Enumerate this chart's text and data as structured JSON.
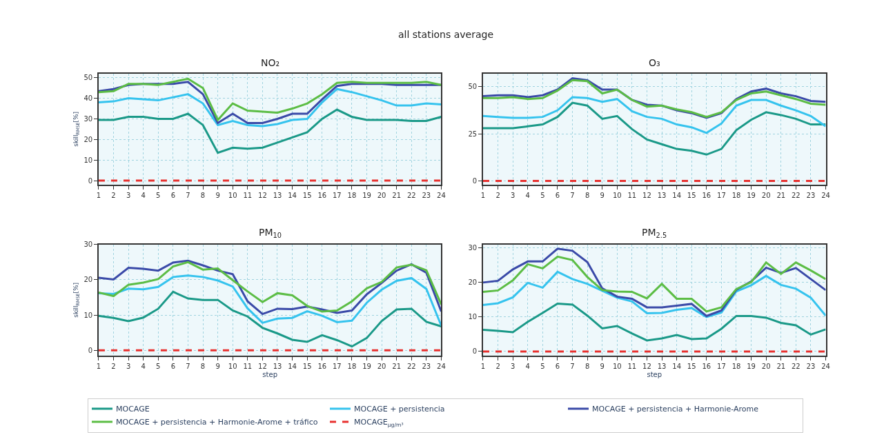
{
  "chart_data": [
    {
      "type": "line",
      "title": "NO₂",
      "annotations": [
        "all stations average"
      ],
      "ylabel": "skill$_{RMSE}$[%]",
      "x": [
        1,
        2,
        3,
        4,
        5,
        6,
        7,
        8,
        9,
        10,
        11,
        12,
        13,
        14,
        15,
        16,
        17,
        18,
        19,
        20,
        21,
        22,
        23,
        24
      ],
      "xlim": [
        1,
        24
      ],
      "xticks": [
        1,
        2,
        3,
        4,
        5,
        6,
        7,
        8,
        9,
        10,
        11,
        12,
        13,
        14,
        15,
        16,
        17,
        18,
        19,
        20,
        21,
        22,
        23,
        24
      ],
      "ylim": [
        -2,
        52
      ],
      "yticks": [
        0,
        10,
        20,
        30,
        40,
        50
      ],
      "grid": true,
      "legend": "bottom",
      "marker": "none",
      "series": [
        {
          "name": "MOCAGE",
          "color": "#1a9988",
          "values": [
            29.5,
            29.5,
            31,
            31,
            30,
            30,
            32.5,
            27,
            13.5,
            16,
            15.5,
            16,
            18.5,
            21,
            23.5,
            30,
            34.5,
            31,
            29.5,
            29.5,
            29.5,
            29,
            29,
            31
          ]
        },
        {
          "name": "MOCAGE + persistencia",
          "color": "#35c3ee",
          "values": [
            38,
            38.5,
            40,
            39.5,
            39,
            40.5,
            42,
            37.5,
            27,
            29,
            27,
            26.5,
            27.5,
            29.5,
            30,
            38,
            44.5,
            43,
            41,
            39,
            36.5,
            36.5,
            37.5,
            37
          ]
        },
        {
          "name": "MOCAGE + persistencia + Harmonie-Arome",
          "color": "#3a4aa8",
          "values": [
            43.5,
            44.5,
            46.5,
            47,
            47,
            47,
            48,
            42,
            28,
            32.5,
            28,
            28,
            30,
            32.5,
            32.5,
            39.5,
            46,
            47,
            47,
            47,
            46.5,
            46.5,
            46.5,
            46.5
          ]
        },
        {
          "name": "MOCAGE + persistencia + Harmonie-Arome + tráfico",
          "color": "#5cbd45",
          "values": [
            43,
            43.5,
            47,
            47,
            46.5,
            48,
            49.5,
            45,
            29.5,
            37.5,
            34,
            33.5,
            33,
            35,
            37.5,
            42,
            47.5,
            48,
            47.5,
            47.5,
            47.5,
            47.5,
            48,
            46.5
          ]
        },
        {
          "name": "MOCAGE$_{μg/m³}$",
          "color": "#e8312f",
          "line_style": "dashed",
          "values": [
            0,
            0,
            0,
            0,
            0,
            0,
            0,
            0,
            0,
            0,
            0,
            0,
            0,
            0,
            0,
            0,
            0,
            0,
            0,
            0,
            0,
            0,
            0,
            0
          ]
        }
      ]
    },
    {
      "type": "line",
      "title": "O₃",
      "x": [
        1,
        2,
        3,
        4,
        5,
        6,
        7,
        8,
        9,
        10,
        11,
        12,
        13,
        14,
        15,
        16,
        17,
        18,
        19,
        20,
        21,
        22,
        23,
        24
      ],
      "xlim": [
        1,
        24
      ],
      "xticks": [
        1,
        2,
        3,
        4,
        5,
        6,
        7,
        8,
        9,
        10,
        11,
        12,
        13,
        14,
        15,
        16,
        17,
        18,
        19,
        20,
        21,
        22,
        23,
        24
      ],
      "ylim": [
        -2,
        57
      ],
      "yticks": [
        0,
        25,
        50
      ],
      "grid": true,
      "marker": "none",
      "series": [
        {
          "name": "MOCAGE",
          "color": "#1a9988",
          "values": [
            28,
            28,
            28,
            29,
            30,
            34,
            41.5,
            40,
            33,
            34.5,
            27.5,
            22,
            19.5,
            17,
            16,
            14,
            17,
            27,
            32.5,
            36.5,
            35,
            33,
            30,
            30
          ]
        },
        {
          "name": "MOCAGE + persistencia",
          "color": "#35c3ee",
          "values": [
            34.5,
            34,
            33.5,
            33.5,
            34,
            37.5,
            44.5,
            44,
            42,
            43.5,
            37,
            34,
            33,
            30,
            28.5,
            25.5,
            30.5,
            40,
            43,
            43,
            40,
            37.5,
            34.5,
            29
          ]
        },
        {
          "name": "MOCAGE + persistencia + Harmonie-Arome",
          "color": "#3a4aa8",
          "values": [
            45,
            45.5,
            45.5,
            44.5,
            45.5,
            48.5,
            54.5,
            53.5,
            48.5,
            48.5,
            43,
            40.5,
            40,
            37.5,
            36,
            33.5,
            36,
            43.5,
            47.5,
            49,
            46.5,
            45,
            42.5,
            42
          ]
        },
        {
          "name": "MOCAGE + persistencia + Harmonie-Arome + tráfico",
          "color": "#5cbd45",
          "values": [
            44,
            44,
            44.5,
            43.5,
            44,
            48,
            53.5,
            53,
            46.5,
            48.5,
            43,
            39.5,
            40,
            38,
            36.5,
            34,
            36.5,
            43,
            46.5,
            47.5,
            45.5,
            43.5,
            41,
            40.5
          ]
        },
        {
          "name": "MOCAGE$_{μg/m³}$",
          "color": "#e8312f",
          "line_style": "dashed",
          "values": [
            0,
            0,
            0,
            0,
            0,
            0,
            0,
            0,
            0,
            0,
            0,
            0,
            0,
            0,
            0,
            0,
            0,
            0,
            0,
            0,
            0,
            0,
            0,
            0
          ]
        }
      ]
    },
    {
      "type": "line",
      "title": "PM$_{10}$",
      "xlabel": "step",
      "ylabel": "skill$_{RMSE}$[%]",
      "x": [
        1,
        2,
        3,
        4,
        5,
        6,
        7,
        8,
        9,
        10,
        11,
        12,
        13,
        14,
        15,
        16,
        17,
        18,
        19,
        20,
        21,
        22,
        23,
        24
      ],
      "xlim": [
        1,
        24
      ],
      "xticks": [
        1,
        2,
        3,
        4,
        5,
        6,
        7,
        8,
        9,
        10,
        11,
        12,
        13,
        14,
        15,
        16,
        17,
        18,
        19,
        20,
        21,
        22,
        23,
        24
      ],
      "ylim": [
        -1.5,
        30
      ],
      "yticks": [
        0,
        10,
        20,
        30
      ],
      "grid": true,
      "marker": "none",
      "series": [
        {
          "name": "MOCAGE",
          "color": "#1a9988",
          "values": [
            9.8,
            9.2,
            8.3,
            9.3,
            11.8,
            16.6,
            14.7,
            14.3,
            14.3,
            11.3,
            9.6,
            6.4,
            4.8,
            3.0,
            2.4,
            4.3,
            2.9,
            1.1,
            3.5,
            8.3,
            11.6,
            11.8,
            8.1,
            6.8
          ]
        },
        {
          "name": "MOCAGE + persistencia",
          "color": "#35c3ee",
          "values": [
            16.2,
            16,
            17.5,
            17.3,
            18,
            20.8,
            21.2,
            20.8,
            19.8,
            18.1,
            11.9,
            7.8,
            9.0,
            9.2,
            11.1,
            9.8,
            8.0,
            8.4,
            13.5,
            17.2,
            19.7,
            20.5,
            17.4,
            7.0
          ]
        },
        {
          "name": "MOCAGE + persistencia + Harmonie-Arome",
          "color": "#3a4aa8",
          "values": [
            20.6,
            20.1,
            23.4,
            23.1,
            22.6,
            24.9,
            25.4,
            24.1,
            22.6,
            21.6,
            13.9,
            10.3,
            11.8,
            11.7,
            12.4,
            11.6,
            10.6,
            11.3,
            15.9,
            19.1,
            22.6,
            24.4,
            22.0,
            11.0
          ]
        },
        {
          "name": "MOCAGE + persistencia + Harmonie-Arome + tráfico",
          "color": "#5cbd45",
          "values": [
            16.4,
            15.4,
            18.6,
            19.2,
            20.2,
            23.8,
            25.0,
            22.9,
            23.2,
            19.9,
            16.7,
            13.7,
            16.2,
            15.6,
            12.6,
            11.0,
            11.3,
            13.9,
            17.6,
            19.4,
            23.5,
            24.3,
            22.7,
            13.0
          ]
        },
        {
          "name": "MOCAGE$_{μg/m³}$",
          "color": "#e8312f",
          "line_style": "dashed",
          "values": [
            0,
            0,
            0,
            0,
            0,
            0,
            0,
            0,
            0,
            0,
            0,
            0,
            0,
            0,
            0,
            0,
            0,
            0,
            0,
            0,
            0,
            0,
            0,
            0
          ]
        }
      ]
    },
    {
      "type": "line",
      "title": "PM$_{2.5}$",
      "xlabel": "step",
      "x": [
        1,
        2,
        3,
        4,
        5,
        6,
        7,
        8,
        9,
        10,
        11,
        12,
        13,
        14,
        15,
        16,
        17,
        18,
        19,
        20,
        21,
        22,
        23,
        24
      ],
      "xlim": [
        1,
        24
      ],
      "xticks": [
        1,
        2,
        3,
        4,
        5,
        6,
        7,
        8,
        9,
        10,
        11,
        12,
        13,
        14,
        15,
        16,
        17,
        18,
        19,
        20,
        21,
        22,
        23,
        24
      ],
      "ylim": [
        -1.2,
        31
      ],
      "yticks": [
        0,
        10,
        20,
        30
      ],
      "grid": true,
      "marker": "none",
      "series": [
        {
          "name": "MOCAGE",
          "color": "#1a9988",
          "values": [
            6.3,
            6.0,
            5.6,
            8.6,
            11.2,
            13.9,
            13.6,
            10.4,
            6.7,
            7.4,
            5.2,
            3.2,
            3.8,
            4.8,
            3.6,
            3.8,
            6.6,
            10.3,
            10.3,
            9.8,
            8.3,
            7.6,
            4.9,
            6.4
          ]
        },
        {
          "name": "MOCAGE + persistencia",
          "color": "#35c3ee",
          "values": [
            13.5,
            14.0,
            15.7,
            19.9,
            18.5,
            23.1,
            21.0,
            19.6,
            17.6,
            15.6,
            14.5,
            11.1,
            11.2,
            12.1,
            12.6,
            10.0,
            11.3,
            17.4,
            19.2,
            21.9,
            19.3,
            18.2,
            15.6,
            10.4
          ]
        },
        {
          "name": "MOCAGE + persistencia + Harmonie-Arome",
          "color": "#3a4aa8",
          "values": [
            20.0,
            20.5,
            23.8,
            26.1,
            26.1,
            29.8,
            29.2,
            25.9,
            18.3,
            15.9,
            15.3,
            12.8,
            12.8,
            13.3,
            13.8,
            10.3,
            11.9,
            17.9,
            20.3,
            24.3,
            22.8,
            24.2,
            21.0,
            17.8
          ]
        },
        {
          "name": "MOCAGE + persistencia + Harmonie-Arome + tráfico",
          "color": "#5cbd45",
          "values": [
            17.3,
            17.7,
            20.6,
            25.3,
            24.1,
            27.5,
            26.5,
            21.6,
            17.8,
            17.4,
            17.3,
            15.4,
            19.6,
            15.3,
            15.3,
            11.6,
            12.8,
            18.1,
            20.1,
            25.8,
            22.5,
            25.8,
            23.5,
            21.0
          ]
        },
        {
          "name": "MOCAGE$_{μg/m³}$",
          "color": "#e8312f",
          "line_style": "dashed",
          "values": [
            0,
            0,
            0,
            0,
            0,
            0,
            0,
            0,
            0,
            0,
            0,
            0,
            0,
            0,
            0,
            0,
            0,
            0,
            0,
            0,
            0,
            0,
            0,
            0
          ]
        }
      ]
    }
  ]
}
